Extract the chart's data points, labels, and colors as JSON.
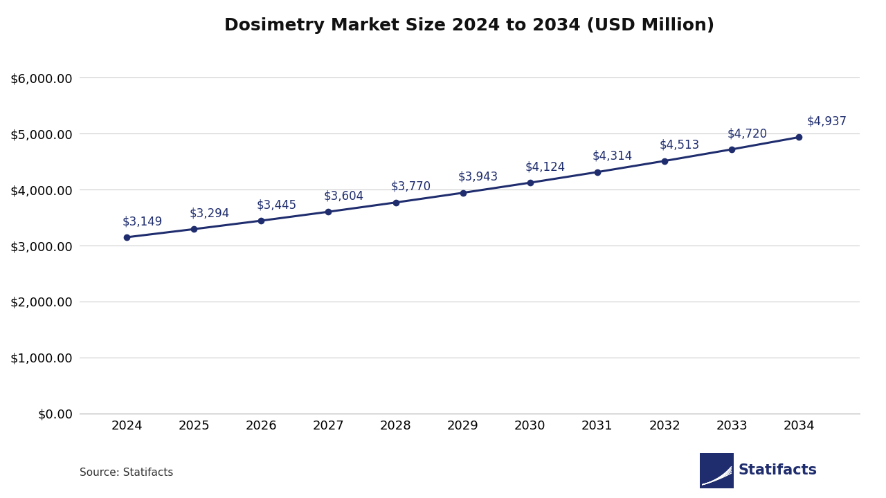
{
  "title": "Dosimetry Market Size 2024 to 2034 (USD Million)",
  "years": [
    2024,
    2025,
    2026,
    2027,
    2028,
    2029,
    2030,
    2031,
    2032,
    2033,
    2034
  ],
  "values": [
    3149,
    3294,
    3445,
    3604,
    3770,
    3943,
    4124,
    4314,
    4513,
    4720,
    4937
  ],
  "labels": [
    "$3,149",
    "$3,294",
    "$3,445",
    "$3,604",
    "$3,770",
    "$3,943",
    "$4,124",
    "$4,314",
    "$4,513",
    "$4,720",
    "$4,937"
  ],
  "line_color": "#1f2d6e",
  "marker_color": "#1f2d6e",
  "background_color": "#ffffff",
  "grid_color": "#cccccc",
  "yticks": [
    0,
    1000,
    2000,
    3000,
    4000,
    5000,
    6000
  ],
  "ylim": [
    0,
    6500
  ],
  "source_text": "Source: Statifacts",
  "title_fontsize": 18,
  "tick_fontsize": 13,
  "label_fontsize": 12,
  "source_fontsize": 11
}
